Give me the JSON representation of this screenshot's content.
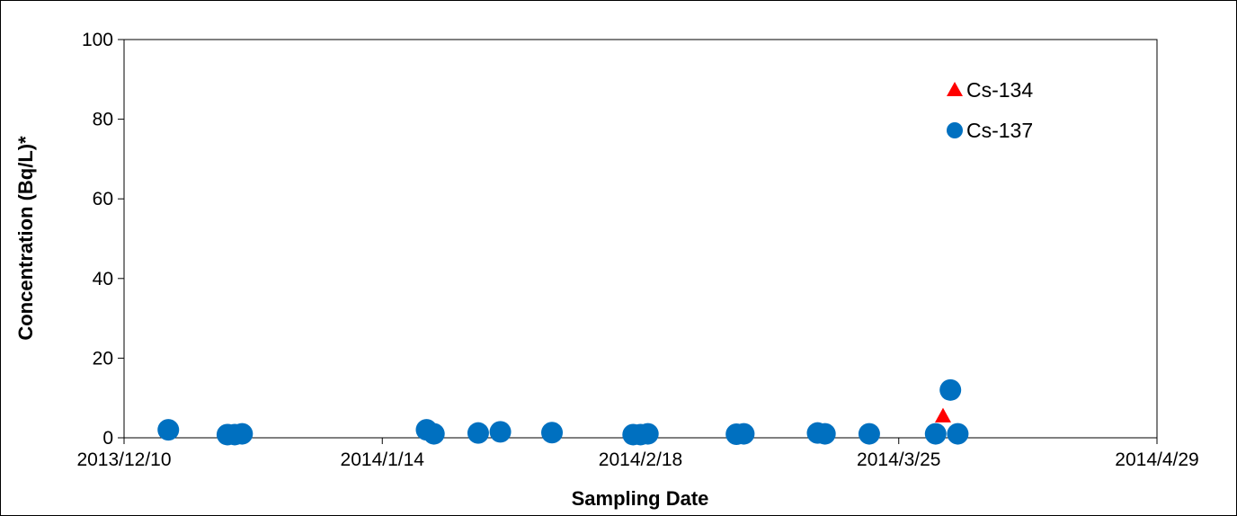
{
  "chart_data": {
    "type": "scatter",
    "xlabel": "Sampling Date",
    "ylabel": "Concentration (Bq/L)*",
    "x_axis": {
      "min": "2013-12-10",
      "max": "2014-04-29",
      "ticks": [
        "2013/12/10",
        "2014/1/14",
        "2014/2/18",
        "2014/3/25",
        "2014/4/29"
      ]
    },
    "y_axis": {
      "min": 0,
      "max": 100,
      "ticks": [
        "0",
        "20",
        "40",
        "60",
        "80",
        "100"
      ]
    },
    "grid": false,
    "legend_position": "top-right",
    "series": [
      {
        "name": "Cs-134",
        "marker": "triangle",
        "color": "#ff0000",
        "points": [
          {
            "x": "2014-03-31",
            "y": 5.5
          }
        ]
      },
      {
        "name": "Cs-137",
        "marker": "circle",
        "color": "#0070c0",
        "points": [
          {
            "x": "2013-12-16",
            "y": 2.0
          },
          {
            "x": "2013-12-24",
            "y": 0.8
          },
          {
            "x": "2013-12-25",
            "y": 0.8
          },
          {
            "x": "2013-12-26",
            "y": 1.0
          },
          {
            "x": "2014-01-20",
            "y": 2.0
          },
          {
            "x": "2014-01-21",
            "y": 1.0
          },
          {
            "x": "2014-01-27",
            "y": 1.2
          },
          {
            "x": "2014-01-30",
            "y": 1.5
          },
          {
            "x": "2014-02-06",
            "y": 1.3
          },
          {
            "x": "2014-02-17",
            "y": 0.8
          },
          {
            "x": "2014-02-18",
            "y": 0.8
          },
          {
            "x": "2014-02-19",
            "y": 1.0
          },
          {
            "x": "2014-03-03",
            "y": 0.9
          },
          {
            "x": "2014-03-04",
            "y": 1.0
          },
          {
            "x": "2014-03-14",
            "y": 1.2
          },
          {
            "x": "2014-03-15",
            "y": 1.0
          },
          {
            "x": "2014-03-21",
            "y": 1.0
          },
          {
            "x": "2014-03-30",
            "y": 1.0
          },
          {
            "x": "2014-04-01",
            "y": 12.0
          },
          {
            "x": "2014-04-02",
            "y": 1.0
          }
        ]
      }
    ]
  }
}
